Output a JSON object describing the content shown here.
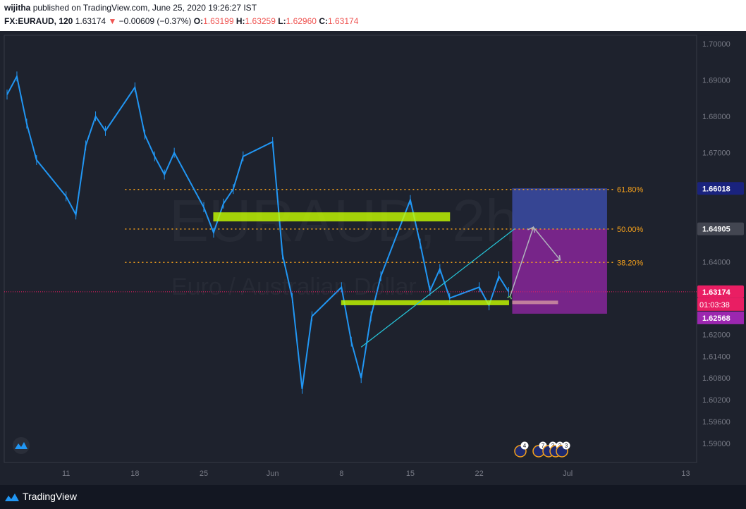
{
  "header": {
    "author": "wijitha",
    "published_text": "published on TradingView.com, June 25, 2020 19:26:27 IST",
    "symbol": "FX:EURAUD, 120",
    "last": "1.63174",
    "change": "−0.00609 (−0.37%)",
    "o_label": "O:",
    "o": "1.63199",
    "h_label": "H:",
    "h": "1.63259",
    "l_label": "L:",
    "l": "1.62960",
    "c_label": "C:",
    "c": "1.63174"
  },
  "footer": {
    "brand": "TradingView"
  },
  "colors": {
    "background": "#1e222d",
    "candle": "#2196f3",
    "fib": "#f7a21b",
    "zone_green": "#c6ff00",
    "trendline": "#26c6da",
    "purple_zone": "#9c27b0",
    "target_zone": "#3f51b5",
    "price_line": "#e91e63"
  },
  "chart_data": {
    "type": "line",
    "title": "",
    "symbol": "FX:EURAUD",
    "interval": "120",
    "watermark": {
      "symbol": "EURAUD, 2h",
      "name": "Euro / Australian Dollar"
    },
    "x_tick_labels": [
      "11",
      "18",
      "25",
      "Jun",
      "8",
      "15",
      "22",
      "Jul",
      "13"
    ],
    "y_tick_labels": [
      "1.70000",
      "1.69000",
      "1.68000",
      "1.67000",
      "1.66000",
      "1.65000",
      "1.64000",
      "1.63000",
      "1.62000",
      "1.61400",
      "1.60800",
      "1.60200",
      "1.59600",
      "1.59000"
    ],
    "ylim": [
      1.585,
      1.702
    ],
    "series": [
      {
        "points": [
          [
            "May 5",
            1.686
          ],
          [
            "May 6",
            1.691
          ],
          [
            "May 7",
            1.678
          ],
          [
            "May 8",
            1.668
          ],
          [
            "May 11",
            1.658
          ],
          [
            "May 12",
            1.653
          ],
          [
            "May 13",
            1.672
          ],
          [
            "May 14",
            1.68
          ],
          [
            "May 15",
            1.676
          ],
          [
            "May 18",
            1.688
          ],
          [
            "May 19",
            1.675
          ],
          [
            "May 20",
            1.669
          ],
          [
            "May 21",
            1.664
          ],
          [
            "May 22",
            1.67
          ],
          [
            "May 25",
            1.655
          ],
          [
            "May 26",
            1.648
          ],
          [
            "May 27",
            1.656
          ],
          [
            "May 28",
            1.66
          ],
          [
            "May 29",
            1.669
          ],
          [
            "Jun 1",
            1.673
          ],
          [
            "Jun 2",
            1.642
          ],
          [
            "Jun 3",
            1.63
          ],
          [
            "Jun 4",
            1.605
          ],
          [
            "Jun 5",
            1.625
          ],
          [
            "Jun 8",
            1.633
          ],
          [
            "Jun 9",
            1.618
          ],
          [
            "Jun 10",
            1.608
          ],
          [
            "Jun 11",
            1.625
          ],
          [
            "Jun 12",
            1.636
          ],
          [
            "Jun 15",
            1.657
          ],
          [
            "Jun 16",
            1.645
          ],
          [
            "Jun 17",
            1.632
          ],
          [
            "Jun 18",
            1.638
          ],
          [
            "Jun 19",
            1.63
          ],
          [
            "Jun 22",
            1.633
          ],
          [
            "Jun 23",
            1.628
          ],
          [
            "Jun 24",
            1.636
          ],
          [
            "Jun 25",
            1.6317
          ]
        ]
      }
    ],
    "last_price": "1.63174",
    "countdown": "01:03:38",
    "fibonacci": [
      {
        "label": "61.80%",
        "price": 1.6599
      },
      {
        "label": "50.00%",
        "price": 1.649
      },
      {
        "label": "38.20%",
        "price": 1.6398
      }
    ],
    "price_labels": [
      "1.66018",
      "1.64905",
      "1.63174",
      "1.62568"
    ],
    "zones": [
      {
        "name": "resistance",
        "from": "May 26",
        "to": "Jun 19",
        "low": 1.6512,
        "high": 1.6535
      },
      {
        "name": "support",
        "from": "Jun 8",
        "to": "Jun 25",
        "low": 1.6283,
        "high": 1.6293
      }
    ],
    "position": {
      "entry": 1.6317,
      "target": 1.6602,
      "stop": 1.6257,
      "from": "Jun 25",
      "to": "Jul 5"
    },
    "event_badges": [
      "4",
      "7",
      "3",
      "3",
      "3"
    ],
    "grid": false,
    "legend": "none"
  }
}
